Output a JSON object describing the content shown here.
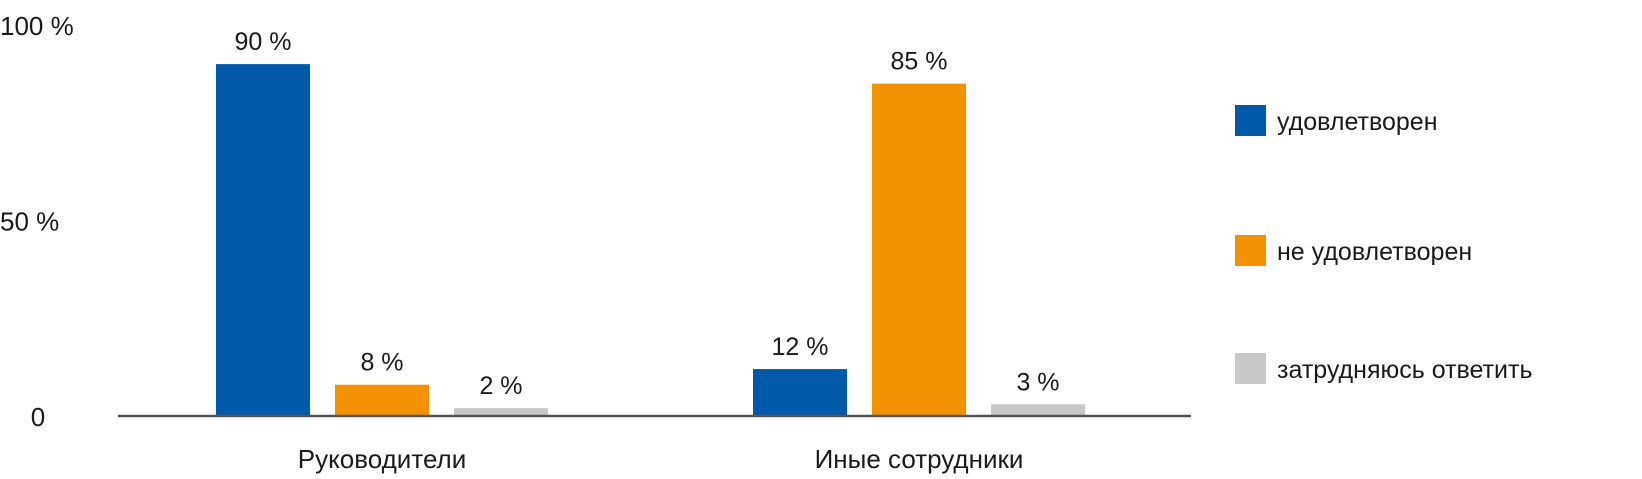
{
  "chart_data": {
    "type": "bar",
    "categories": [
      "Руководители",
      "Иные сотрудники"
    ],
    "series": [
      {
        "name": "удовлетворен",
        "values": [
          90,
          12
        ],
        "color": "#005aa9"
      },
      {
        "name": "не удовлетворен",
        "values": [
          8,
          85
        ],
        "color": "#f39200"
      },
      {
        "name": "затрудняюсь ответить",
        "values": [
          2,
          3
        ],
        "color": "#c8c8c8"
      }
    ],
    "data_labels": [
      [
        "90 %",
        "12 %"
      ],
      [
        "8 %",
        "85 %"
      ],
      [
        "2 %",
        "3 %"
      ]
    ],
    "yticks": [
      {
        "value": 0,
        "label": "0"
      },
      {
        "value": 50,
        "label": "50 %"
      },
      {
        "value": 100,
        "label": "100 %"
      }
    ],
    "ylim": [
      0,
      100
    ],
    "xlabel": "",
    "ylabel": "",
    "title": "",
    "grid": false,
    "legend_position": "right",
    "axis_color": "#555555"
  }
}
